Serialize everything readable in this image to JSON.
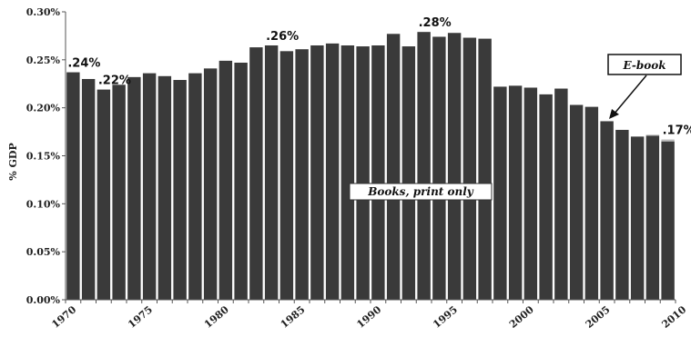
{
  "chart_data": {
    "type": "bar",
    "ylabel": "% GDP",
    "xlabel": "",
    "ylim": [
      0,
      0.3
    ],
    "y_ticks": [
      "0.00%",
      "0.05%",
      "0.10%",
      "0.15%",
      "0.20%",
      "0.25%",
      "0.30%"
    ],
    "x_tick_labels": [
      "1970",
      "1975",
      "1980",
      "1985",
      "1990",
      "1995",
      "2000",
      "2005",
      "2010"
    ],
    "categories": [
      "1970",
      "1971",
      "1972",
      "1973",
      "1974",
      "1975",
      "1976",
      "1977",
      "1978",
      "1979",
      "1980",
      "1981",
      "1982",
      "1983",
      "1984",
      "1985",
      "1986",
      "1987",
      "1988",
      "1989",
      "1990",
      "1991",
      "1992",
      "1993",
      "1994",
      "1995",
      "1996",
      "1997",
      "1998",
      "1999",
      "2000",
      "2001",
      "2002",
      "2003",
      "2004",
      "2005",
      "2006",
      "2007",
      "2008",
      "2009"
    ],
    "series": [
      {
        "name": "Books, print only",
        "values": [
          0.237,
          0.23,
          0.219,
          0.224,
          0.232,
          0.236,
          0.233,
          0.229,
          0.236,
          0.241,
          0.249,
          0.247,
          0.263,
          0.265,
          0.259,
          0.261,
          0.265,
          0.267,
          0.265,
          0.264,
          0.265,
          0.277,
          0.264,
          0.279,
          0.274,
          0.278,
          0.273,
          0.272,
          0.222,
          0.223,
          0.221,
          0.214,
          0.22,
          0.203,
          0.201,
          0.186,
          0.177,
          0.17,
          0.171,
          0.165
        ]
      },
      {
        "name": "E-book",
        "values": [
          0,
          0,
          0,
          0,
          0,
          0,
          0,
          0,
          0,
          0,
          0,
          0,
          0,
          0,
          0,
          0,
          0,
          0,
          0,
          0,
          0,
          0,
          0,
          0,
          0,
          0,
          0,
          0,
          0,
          0,
          0,
          0,
          0,
          0,
          0,
          0,
          0,
          0,
          0.001,
          0.002
        ]
      }
    ],
    "annotations": [
      {
        "text": ".24%",
        "year": "1970"
      },
      {
        "text": ".22%",
        "year": "1972"
      },
      {
        "text": ".26%",
        "year": "1983"
      },
      {
        "text": ".28%",
        "year": "1993"
      },
      {
        "text": ".17%",
        "year": "2009"
      }
    ],
    "box_labels": {
      "print": "Books, print only",
      "ebook": "E-book"
    },
    "grid": false,
    "colors": {
      "print": "#3a3a3a",
      "ebook": "#bdbdbd"
    }
  }
}
